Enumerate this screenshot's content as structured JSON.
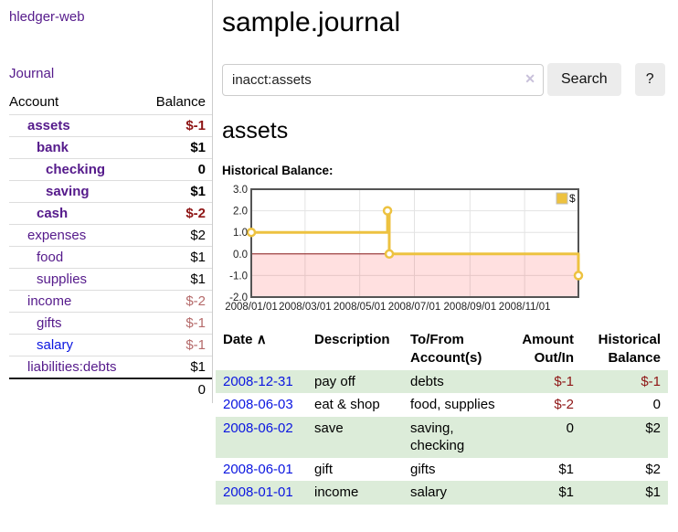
{
  "app": {
    "title": "hledger-web"
  },
  "sidebar": {
    "journal_link": "Journal",
    "headers": {
      "account": "Account",
      "balance": "Balance"
    },
    "accounts": [
      {
        "name": "assets",
        "depth": 1,
        "bold": true,
        "balance": "$-1",
        "neg": "strong",
        "link": "purple"
      },
      {
        "name": "bank",
        "depth": 2,
        "bold": true,
        "balance": "$1",
        "neg": null,
        "link": "purple"
      },
      {
        "name": "checking",
        "depth": 3,
        "bold": true,
        "balance": "0",
        "neg": null,
        "link": "purple"
      },
      {
        "name": "saving",
        "depth": 3,
        "bold": true,
        "balance": "$1",
        "neg": null,
        "link": "purple"
      },
      {
        "name": "cash",
        "depth": 2,
        "bold": true,
        "balance": "$-2",
        "neg": "strong",
        "link": "purple"
      },
      {
        "name": "expenses",
        "depth": 1,
        "bold": false,
        "balance": "$2",
        "neg": null,
        "link": "purple"
      },
      {
        "name": "food",
        "depth": 2,
        "bold": false,
        "balance": "$1",
        "neg": null,
        "link": "purple"
      },
      {
        "name": "supplies",
        "depth": 2,
        "bold": false,
        "balance": "$1",
        "neg": null,
        "link": "purple"
      },
      {
        "name": "income",
        "depth": 1,
        "bold": false,
        "balance": "$-2",
        "neg": "muted",
        "link": "purple"
      },
      {
        "name": "gifts",
        "depth": 2,
        "bold": false,
        "balance": "$-1",
        "neg": "muted",
        "link": "purple"
      },
      {
        "name": "salary",
        "depth": 2,
        "bold": false,
        "balance": "$-1",
        "neg": "muted",
        "link": "blue"
      },
      {
        "name": "liabilities:debts",
        "depth": 1,
        "bold": false,
        "balance": "$1",
        "neg": null,
        "link": "purple"
      }
    ],
    "total": "0"
  },
  "main": {
    "title": "sample.journal",
    "search": {
      "value": "inacct:assets",
      "clear_icon": "✕",
      "button": "Search",
      "help_button": "?"
    },
    "account_heading": "assets"
  },
  "chart_data": {
    "type": "line",
    "step": true,
    "title": "Historical Balance:",
    "series": [
      {
        "name": "$",
        "color": "#EDC240",
        "points": [
          [
            "2008-01-01",
            1
          ],
          [
            "2008-06-01",
            2
          ],
          [
            "2008-06-03",
            0
          ],
          [
            "2008-12-31",
            -1
          ]
        ]
      }
    ],
    "x_ticks": [
      "2008/01/01",
      "2008/03/01",
      "2008/05/01",
      "2008/07/01",
      "2008/09/01",
      "2008/11/01"
    ],
    "y_ticks": [
      "3.0",
      "2.0",
      "1.0",
      "0.0",
      "-1.0",
      "-2.0"
    ],
    "ylim": [
      -2,
      3
    ],
    "xlim": [
      "2008-01-01",
      "2008-12-31"
    ],
    "legend": {
      "label": "$",
      "position": "top-right"
    },
    "grid": true,
    "negative_region_color": "rgba(255,0,0,0.12)",
    "zero_line_color": "#8b1a1a",
    "border_color": "#545454"
  },
  "transactions": {
    "headers": {
      "date": "Date",
      "sort_icon": "∧",
      "description": "Description",
      "accounts": "To/From Account(s)",
      "amount": "Amount Out/In",
      "balance": "Historical Balance"
    },
    "rows": [
      {
        "date": "2008-12-31",
        "description": "pay off",
        "accounts": "debts",
        "amount": "$-1",
        "amount_negative": true,
        "balance": "$-1",
        "balance_negative": true
      },
      {
        "date": "2008-06-03",
        "description": "eat & shop",
        "accounts": "food, supplies",
        "amount": "$-2",
        "amount_negative": true,
        "balance": "0",
        "balance_negative": false
      },
      {
        "date": "2008-06-02",
        "description": "save",
        "accounts": "saving, checking",
        "amount": "0",
        "amount_negative": false,
        "balance": "$2",
        "balance_negative": false
      },
      {
        "date": "2008-06-01",
        "description": "gift",
        "accounts": "gifts",
        "amount": "$1",
        "amount_negative": false,
        "balance": "$2",
        "balance_negative": false
      },
      {
        "date": "2008-01-01",
        "description": "income",
        "accounts": "salary",
        "amount": "$1",
        "amount_negative": false,
        "balance": "$1",
        "balance_negative": false
      }
    ]
  }
}
